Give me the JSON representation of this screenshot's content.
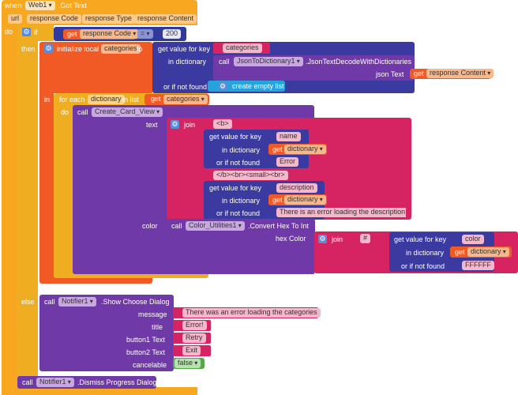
{
  "event": {
    "when": "when",
    "component": "Web1",
    "event_name": ".Got Text",
    "params": [
      "url",
      "response Code",
      "response Type",
      "response Content"
    ],
    "do": "do"
  },
  "if_block": {
    "if": "if",
    "then": "then",
    "else": "else",
    "compare": {
      "get": "get",
      "var": "response Code",
      "op": "=",
      "value": "200"
    }
  },
  "init_local": {
    "label": "initialize local",
    "var": "categories",
    "to": "to",
    "in": "in"
  },
  "lookup_categories": {
    "label": "get value for key",
    "key": "categories",
    "in_dict_label": "in dictionary",
    "call": "call",
    "component": "JsonToDictionary1",
    "method": ".JsonTextDecodeWithDictionaries",
    "json_text_label": "json Text",
    "get": "get",
    "json_var": "response Content",
    "not_found_label": "or if not found",
    "not_found_value": "create empty list"
  },
  "for_each": {
    "label": "for each",
    "var": "dictionary",
    "in_list": "in list",
    "get": "get",
    "list_var": "categories",
    "do": "do"
  },
  "create_card": {
    "call": "call",
    "procedure": "Create_Card_View",
    "text_label": "text",
    "join": "join",
    "str_b": "<b>",
    "lookup1_label": "get value for key",
    "lookup1_key": "name",
    "in_dict": "in dictionary",
    "get": "get",
    "dict_var": "dictionary",
    "not_found": "or if not found",
    "lookup1_default": "Error",
    "str_mid": "</b><br><small><br>",
    "lookup2_label": "get value for key",
    "lookup2_key": "description",
    "lookup2_default": "There is an error loading the description",
    "color_label": "color",
    "color_call": "call",
    "color_component": "Color_Utilities1",
    "color_method": ".Convert Hex To Int",
    "hex_label": "hex Color",
    "hex_join": "join",
    "hash": "#",
    "lookup3_label": "get value for key",
    "lookup3_key": "color",
    "lookup3_default": "FFFFFF"
  },
  "else_dialog": {
    "call": "call",
    "component": "Notifier1",
    "method": ".Show Choose Dialog",
    "message_label": "message",
    "message": "There was an error loading the categories",
    "title_label": "title",
    "title": "Error!",
    "button1_label": "button1 Text",
    "button1": "Retry",
    "button2_label": "button2 Text",
    "button2": "Exit",
    "cancelable_label": "cancelable",
    "cancelable": "false"
  },
  "dismiss": {
    "call": "call",
    "component": "Notifier1",
    "method": ".Dismiss Progress Dialog"
  },
  "colors": {
    "event": "#f7a720",
    "control": "#efae21",
    "variable": "#f15a24",
    "dictionary": "#3a3aa0",
    "component": "#7b3fb1",
    "text": "#d62463",
    "list": "#27a3dc",
    "logic": "#55a848"
  }
}
